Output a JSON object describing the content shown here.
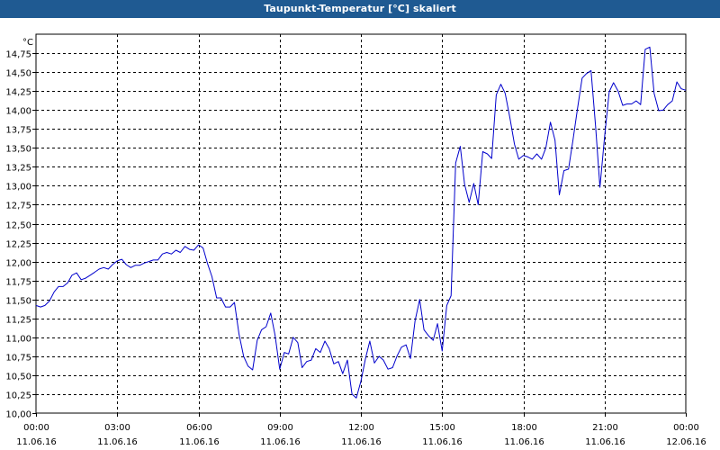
{
  "window": {
    "title": "Taupunkt-Temperatur [°C] skaliert"
  },
  "chart_data": {
    "type": "line",
    "title": "Taupunkt-Temperatur [°C] skaliert",
    "ylabel": "°C",
    "xlabel": "",
    "ylim": [
      10.0,
      15.0
    ],
    "y_ticks": [
      "10,00",
      "10,25",
      "10,50",
      "10,75",
      "11,00",
      "11,25",
      "11,50",
      "11,75",
      "12,00",
      "12,25",
      "12,50",
      "12,75",
      "13,00",
      "13,25",
      "13,50",
      "13,75",
      "14,00",
      "14,25",
      "14,50",
      "14,75"
    ],
    "xlim": [
      "11.06.16 00:00",
      "12.06.16 00:00"
    ],
    "x_ticks": [
      {
        "time": "00:00",
        "date": "11.06.16"
      },
      {
        "time": "03:00",
        "date": "11.06.16"
      },
      {
        "time": "06:00",
        "date": "11.06.16"
      },
      {
        "time": "09:00",
        "date": "11.06.16"
      },
      {
        "time": "12:00",
        "date": "11.06.16"
      },
      {
        "time": "15:00",
        "date": "11.06.16"
      },
      {
        "time": "18:00",
        "date": "11.06.16"
      },
      {
        "time": "21:00",
        "date": "11.06.16"
      },
      {
        "time": "00:00",
        "date": "12.06.16"
      }
    ],
    "grid": true,
    "line_color": "#0000cc",
    "series": [
      {
        "x_unit": "hours since 11.06.16 00:00",
        "points": [
          [
            0.0,
            11.42
          ],
          [
            0.17,
            11.4
          ],
          [
            0.33,
            11.42
          ],
          [
            0.5,
            11.48
          ],
          [
            0.67,
            11.6
          ],
          [
            0.83,
            11.67
          ],
          [
            1.0,
            11.67
          ],
          [
            1.17,
            11.72
          ],
          [
            1.33,
            11.82
          ],
          [
            1.5,
            11.85
          ],
          [
            1.67,
            11.76
          ],
          [
            1.83,
            11.78
          ],
          [
            2.0,
            11.82
          ],
          [
            2.17,
            11.86
          ],
          [
            2.33,
            11.9
          ],
          [
            2.5,
            11.92
          ],
          [
            2.67,
            11.9
          ],
          [
            2.83,
            11.96
          ],
          [
            3.0,
            12.01
          ],
          [
            3.17,
            12.03
          ],
          [
            3.33,
            11.96
          ],
          [
            3.5,
            11.92
          ],
          [
            3.67,
            11.95
          ],
          [
            3.83,
            11.95
          ],
          [
            4.0,
            11.98
          ],
          [
            4.17,
            12.0
          ],
          [
            4.33,
            12.02
          ],
          [
            4.5,
            12.02
          ],
          [
            4.67,
            12.1
          ],
          [
            4.83,
            12.12
          ],
          [
            5.0,
            12.1
          ],
          [
            5.17,
            12.15
          ],
          [
            5.33,
            12.12
          ],
          [
            5.5,
            12.2
          ],
          [
            5.67,
            12.16
          ],
          [
            5.83,
            12.15
          ],
          [
            6.0,
            12.22
          ],
          [
            6.17,
            12.18
          ],
          [
            6.33,
            11.98
          ],
          [
            6.5,
            11.8
          ],
          [
            6.67,
            11.52
          ],
          [
            6.83,
            11.52
          ],
          [
            7.0,
            11.4
          ],
          [
            7.17,
            11.4
          ],
          [
            7.33,
            11.46
          ],
          [
            7.5,
            11.04
          ],
          [
            7.67,
            10.75
          ],
          [
            7.83,
            10.62
          ],
          [
            8.0,
            10.57
          ],
          [
            8.17,
            10.96
          ],
          [
            8.33,
            11.1
          ],
          [
            8.5,
            11.14
          ],
          [
            8.67,
            11.32
          ],
          [
            8.83,
            11.03
          ],
          [
            9.0,
            10.58
          ],
          [
            9.17,
            10.8
          ],
          [
            9.33,
            10.78
          ],
          [
            9.5,
            11.0
          ],
          [
            9.67,
            10.93
          ],
          [
            9.83,
            10.6
          ],
          [
            10.0,
            10.68
          ],
          [
            10.17,
            10.7
          ],
          [
            10.33,
            10.85
          ],
          [
            10.5,
            10.8
          ],
          [
            10.67,
            10.95
          ],
          [
            10.83,
            10.85
          ],
          [
            11.0,
            10.65
          ],
          [
            11.17,
            10.68
          ],
          [
            11.33,
            10.52
          ],
          [
            11.5,
            10.7
          ],
          [
            11.67,
            10.25
          ],
          [
            11.83,
            10.2
          ],
          [
            12.0,
            10.42
          ],
          [
            12.17,
            10.72
          ],
          [
            12.33,
            10.95
          ],
          [
            12.5,
            10.66
          ],
          [
            12.67,
            10.75
          ],
          [
            12.83,
            10.7
          ],
          [
            13.0,
            10.58
          ],
          [
            13.17,
            10.6
          ],
          [
            13.33,
            10.75
          ],
          [
            13.5,
            10.87
          ],
          [
            13.67,
            10.9
          ],
          [
            13.83,
            10.72
          ],
          [
            14.0,
            11.22
          ],
          [
            14.17,
            11.5
          ],
          [
            14.33,
            11.1
          ],
          [
            14.5,
            11.02
          ],
          [
            14.67,
            10.96
          ],
          [
            14.83,
            11.18
          ],
          [
            15.0,
            10.82
          ],
          [
            15.17,
            11.42
          ],
          [
            15.33,
            11.55
          ],
          [
            15.5,
            13.3
          ],
          [
            15.67,
            13.52
          ],
          [
            15.83,
            13.02
          ],
          [
            16.0,
            12.78
          ],
          [
            16.17,
            13.03
          ],
          [
            16.33,
            12.75
          ],
          [
            16.5,
            13.45
          ],
          [
            16.67,
            13.42
          ],
          [
            16.83,
            13.36
          ],
          [
            17.0,
            14.2
          ],
          [
            17.17,
            14.34
          ],
          [
            17.33,
            14.22
          ],
          [
            17.5,
            13.9
          ],
          [
            17.67,
            13.55
          ],
          [
            17.83,
            13.35
          ],
          [
            18.0,
            13.4
          ],
          [
            18.17,
            13.38
          ],
          [
            18.33,
            13.35
          ],
          [
            18.5,
            13.42
          ],
          [
            18.67,
            13.35
          ],
          [
            18.83,
            13.5
          ],
          [
            19.0,
            13.84
          ],
          [
            19.17,
            13.6
          ],
          [
            19.33,
            12.88
          ],
          [
            19.5,
            13.2
          ],
          [
            19.67,
            13.22
          ],
          [
            19.83,
            13.6
          ],
          [
            20.0,
            14.02
          ],
          [
            20.17,
            14.42
          ],
          [
            20.33,
            14.48
          ],
          [
            20.5,
            14.52
          ],
          [
            20.67,
            13.78
          ],
          [
            20.83,
            12.98
          ],
          [
            21.0,
            13.65
          ],
          [
            21.17,
            14.24
          ],
          [
            21.33,
            14.36
          ],
          [
            21.5,
            14.25
          ],
          [
            21.67,
            14.06
          ],
          [
            21.83,
            14.08
          ],
          [
            22.0,
            14.08
          ],
          [
            22.17,
            14.12
          ],
          [
            22.33,
            14.07
          ],
          [
            22.5,
            14.8
          ],
          [
            22.67,
            14.83
          ],
          [
            22.83,
            14.22
          ],
          [
            23.0,
            13.99
          ],
          [
            23.17,
            14.0
          ],
          [
            23.33,
            14.07
          ],
          [
            23.5,
            14.12
          ],
          [
            23.67,
            14.37
          ],
          [
            23.83,
            14.28
          ],
          [
            24.0,
            14.26
          ]
        ]
      }
    ]
  }
}
